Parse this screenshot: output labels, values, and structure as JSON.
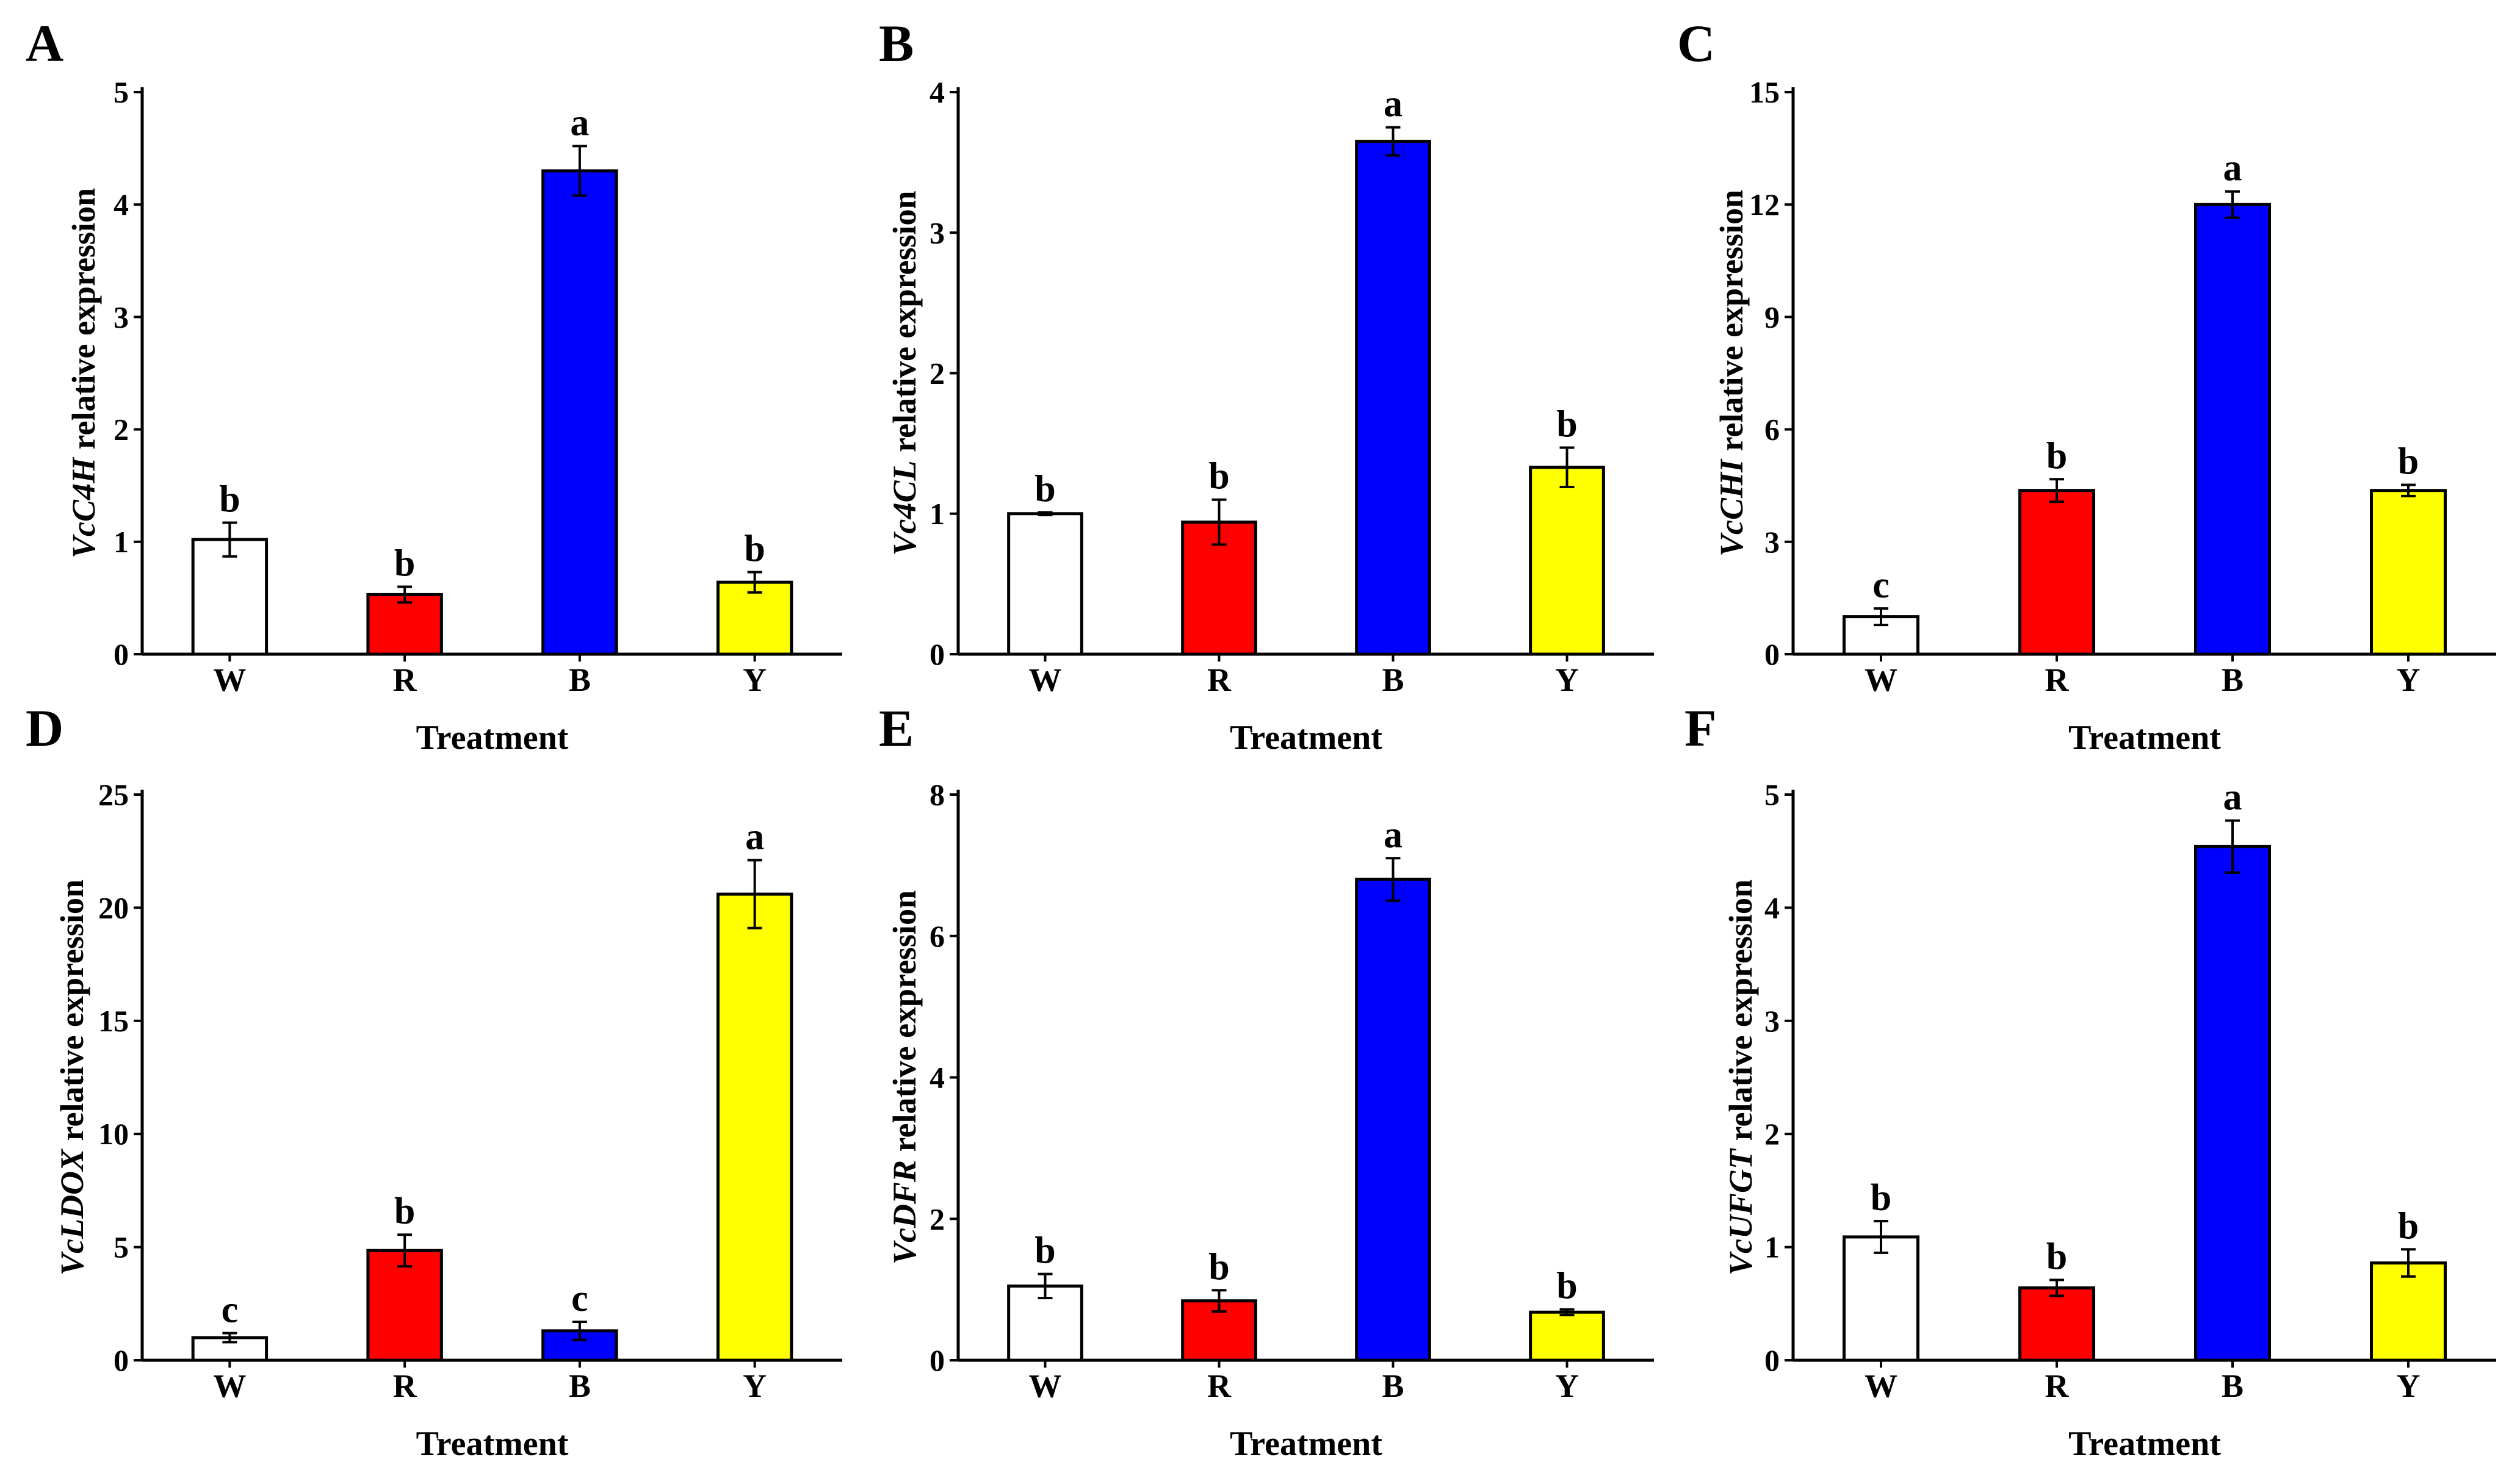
{
  "colors": {
    "W": "#ffffff",
    "R": "#ff0000",
    "B": "#0000ff",
    "Y": "#ffff00",
    "stroke": "#000000"
  },
  "chart_data": [
    {
      "panel": "A",
      "type": "bar",
      "xlabel": "Treatment",
      "ylabel_gene": "VcC4H",
      "ylabel_suffix": " relative expression",
      "categories": [
        "W",
        "R",
        "B",
        "Y"
      ],
      "values": [
        1.02,
        0.53,
        4.3,
        0.64
      ],
      "errors": [
        0.15,
        0.07,
        0.22,
        0.09
      ],
      "letters": [
        "b",
        "b",
        "a",
        "b"
      ],
      "ylim": [
        0,
        5
      ],
      "yticks": [
        0,
        1,
        2,
        3,
        4,
        5
      ]
    },
    {
      "panel": "B",
      "type": "bar",
      "xlabel": "Treatment",
      "ylabel_gene": "Vc4CL",
      "ylabel_suffix": " relative expression",
      "categories": [
        "W",
        "R",
        "B",
        "Y"
      ],
      "values": [
        1.0,
        0.94,
        3.65,
        1.33
      ],
      "errors": [
        0.01,
        0.16,
        0.1,
        0.14
      ],
      "letters": [
        "b",
        "b",
        "a",
        "b"
      ],
      "ylim": [
        0,
        4
      ],
      "yticks": [
        0,
        1,
        2,
        3,
        4
      ]
    },
    {
      "panel": "C",
      "type": "bar",
      "xlabel": "Treatment",
      "ylabel_gene": "VcCHI",
      "ylabel_suffix": " relative expression",
      "categories": [
        "W",
        "R",
        "B",
        "Y"
      ],
      "values": [
        1.0,
        4.37,
        12.0,
        4.37
      ],
      "errors": [
        0.22,
        0.3,
        0.35,
        0.15
      ],
      "letters": [
        "c",
        "b",
        "a",
        "b"
      ],
      "ylim": [
        0,
        15
      ],
      "yticks": [
        0,
        3,
        6,
        9,
        12,
        15
      ]
    },
    {
      "panel": "D",
      "type": "bar",
      "xlabel": "Treatment",
      "ylabel_gene": "VcLDOX",
      "ylabel_suffix": " relative expression",
      "categories": [
        "W",
        "R",
        "B",
        "Y"
      ],
      "values": [
        1.0,
        4.85,
        1.3,
        20.6
      ],
      "errors": [
        0.2,
        0.7,
        0.4,
        1.5
      ],
      "letters": [
        "c",
        "b",
        "c",
        "a"
      ],
      "ylim": [
        0,
        25
      ],
      "yticks": [
        0,
        5,
        10,
        15,
        20,
        25
      ]
    },
    {
      "panel": "E",
      "type": "bar",
      "xlabel": "Treatment",
      "ylabel_gene": "VcDFR",
      "ylabel_suffix": " relative expression",
      "categories": [
        "W",
        "R",
        "B",
        "Y"
      ],
      "values": [
        1.05,
        0.84,
        6.8,
        0.68
      ],
      "errors": [
        0.17,
        0.15,
        0.3,
        0.04
      ],
      "letters": [
        "b",
        "b",
        "a",
        "b"
      ],
      "ylim": [
        0,
        8
      ],
      "yticks": [
        0,
        2,
        4,
        6,
        8
      ]
    },
    {
      "panel": "F",
      "type": "bar",
      "xlabel": "Treatment",
      "ylabel_gene": "VcUFGT",
      "ylabel_suffix": " relative expression",
      "categories": [
        "W",
        "R",
        "B",
        "Y"
      ],
      "values": [
        1.09,
        0.64,
        4.54,
        0.86
      ],
      "errors": [
        0.14,
        0.07,
        0.23,
        0.12
      ],
      "letters": [
        "b",
        "b",
        "a",
        "b"
      ],
      "ylim": [
        0,
        5
      ],
      "yticks": [
        0,
        1,
        2,
        3,
        4,
        5
      ]
    }
  ]
}
